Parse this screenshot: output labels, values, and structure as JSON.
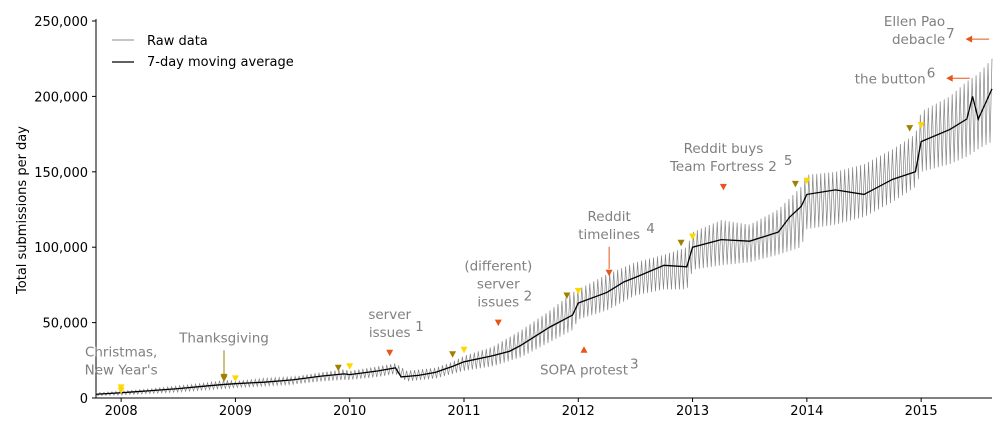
{
  "chart_data": {
    "type": "line",
    "ylabel": "Total submissions per day",
    "xlim": [
      2007.78,
      2015.62
    ],
    "ylim": [
      0,
      250000
    ],
    "yticks": [
      0,
      50000,
      100000,
      150000,
      200000,
      250000
    ],
    "ytick_labels": [
      "0",
      "50,000",
      "100,000",
      "150,000",
      "200,000",
      "250,000"
    ],
    "xticks": [
      2008,
      2009,
      2010,
      2011,
      2012,
      2013,
      2014,
      2015
    ],
    "xtick_labels": [
      "2008",
      "2009",
      "2010",
      "2011",
      "2012",
      "2013",
      "2014",
      "2015"
    ],
    "grid": false,
    "legend": {
      "position": "top-left",
      "entries": [
        {
          "label": "Raw data",
          "color": "#888888"
        },
        {
          "label": "7-day moving average",
          "color": "#000000"
        }
      ]
    },
    "series": [
      {
        "name": "Raw data",
        "style": "band",
        "color": "#777777",
        "x": [
          2007.78,
          2008.0,
          2008.25,
          2008.5,
          2008.75,
          2008.9,
          2009.0,
          2009.25,
          2009.5,
          2009.75,
          2009.95,
          2010.0,
          2010.25,
          2010.4,
          2010.5,
          2010.75,
          2010.9,
          2011.0,
          2011.25,
          2011.5,
          2011.75,
          2011.95,
          2012.0,
          2012.25,
          2012.5,
          2012.75,
          2012.95,
          2013.0,
          2013.25,
          2013.5,
          2013.75,
          2013.95,
          2014.0,
          2014.25,
          2014.5,
          2014.75,
          2014.95,
          2015.0,
          2015.25,
          2015.4,
          2015.5,
          2015.62
        ],
        "low": [
          1500,
          2000,
          3000,
          4000,
          5500,
          6000,
          7000,
          8000,
          9000,
          11000,
          12000,
          12000,
          14000,
          16000,
          11000,
          13000,
          16000,
          18000,
          21000,
          27000,
          37000,
          45000,
          52000,
          58000,
          68000,
          72000,
          72000,
          85000,
          88000,
          90000,
          95000,
          100000,
          112000,
          115000,
          120000,
          130000,
          140000,
          150000,
          155000,
          160000,
          165000,
          170000
        ],
        "high": [
          3500,
          4500,
          6000,
          8000,
          10000,
          12000,
          11000,
          13000,
          14000,
          17000,
          19000,
          18000,
          21000,
          23000,
          18000,
          20000,
          24000,
          28000,
          34000,
          45000,
          58000,
          70000,
          72000,
          82000,
          90000,
          95000,
          100000,
          110000,
          118000,
          115000,
          125000,
          140000,
          148000,
          150000,
          155000,
          165000,
          175000,
          190000,
          200000,
          210000,
          215000,
          225000
        ]
      },
      {
        "name": "7-day moving average",
        "style": "line",
        "color": "#000000",
        "x": [
          2007.78,
          2008.0,
          2008.25,
          2008.5,
          2008.75,
          2008.9,
          2009.0,
          2009.25,
          2009.5,
          2009.75,
          2009.95,
          2010.0,
          2010.25,
          2010.4,
          2010.45,
          2010.6,
          2010.75,
          2010.9,
          2011.0,
          2011.25,
          2011.4,
          2011.5,
          2011.75,
          2011.95,
          2012.0,
          2012.25,
          2012.4,
          2012.5,
          2012.75,
          2012.95,
          2013.0,
          2013.25,
          2013.5,
          2013.75,
          2013.85,
          2013.95,
          2014.0,
          2014.25,
          2014.5,
          2014.75,
          2014.95,
          2015.0,
          2015.25,
          2015.4,
          2015.45,
          2015.5,
          2015.62
        ],
        "y": [
          2500,
          3500,
          4800,
          6200,
          8000,
          9000,
          9500,
          10500,
          12000,
          14500,
          16000,
          15500,
          18000,
          20000,
          14000,
          15000,
          17000,
          21000,
          24000,
          28000,
          31000,
          35000,
          47000,
          55000,
          63000,
          70000,
          77000,
          80000,
          88000,
          87000,
          100000,
          105000,
          104000,
          110000,
          120000,
          127000,
          135000,
          138000,
          135000,
          145000,
          150000,
          170000,
          178000,
          185000,
          200000,
          185000,
          205000
        ]
      }
    ],
    "annotations": [
      {
        "lines": [
          "Christmas,",
          "New Year's"
        ],
        "x": 2008.0,
        "y": 5000,
        "marker": "down",
        "color": "#FFD700"
      },
      {
        "lines": [
          "Thanksgiving"
        ],
        "x": 2008.9,
        "y": 13000,
        "marker": "down",
        "color": "#A08000"
      },
      {
        "lines": [
          "server",
          "issues"
        ],
        "sup": "1",
        "x": 2010.35,
        "y": 30000,
        "marker": "down",
        "color": "#E8541A"
      },
      {
        "lines": [
          "(different)",
          "server",
          "issues"
        ],
        "sup": "2",
        "x": 2011.3,
        "y": 50000,
        "marker": "down",
        "color": "#E8541A"
      },
      {
        "lines": [
          "SOPA protest"
        ],
        "sup": "3",
        "x": 2012.05,
        "y": 32000,
        "marker": "up",
        "color": "#E8541A"
      },
      {
        "lines": [
          "Reddit",
          "timelines"
        ],
        "sup": "4",
        "x": 2012.27,
        "y": 83000,
        "marker": "down",
        "color": "#E8541A"
      },
      {
        "lines": [
          "Reddit buys",
          "Team Fortress 2"
        ],
        "sup": "5",
        "x": 2013.27,
        "y": 140000,
        "marker": "down",
        "color": "#E8541A"
      },
      {
        "lines": [
          "the button"
        ],
        "sup": "6",
        "x": 2015.25,
        "y": 212000,
        "marker": "left",
        "color": "#E8541A"
      },
      {
        "lines": [
          "Ellen Pao",
          "debacle"
        ],
        "sup": "7",
        "x": 2015.42,
        "y": 238000,
        "marker": "left",
        "color": "#E8541A"
      }
    ],
    "holiday_markers": [
      {
        "x": 2008.0,
        "y": 7000,
        "color": "#FFD700"
      },
      {
        "x": 2008.9,
        "y": 14000,
        "color": "#A08000"
      },
      {
        "x": 2009.0,
        "y": 13000,
        "color": "#FFD700"
      },
      {
        "x": 2009.9,
        "y": 20000,
        "color": "#A08000"
      },
      {
        "x": 2010.0,
        "y": 21000,
        "color": "#FFD700"
      },
      {
        "x": 2010.9,
        "y": 29000,
        "color": "#A08000"
      },
      {
        "x": 2011.0,
        "y": 32000,
        "color": "#FFD700"
      },
      {
        "x": 2011.9,
        "y": 68000,
        "color": "#A08000"
      },
      {
        "x": 2012.0,
        "y": 71000,
        "color": "#FFD700"
      },
      {
        "x": 2012.9,
        "y": 103000,
        "color": "#A08000"
      },
      {
        "x": 2013.0,
        "y": 107000,
        "color": "#FFD700"
      },
      {
        "x": 2013.9,
        "y": 142000,
        "color": "#A08000"
      },
      {
        "x": 2014.0,
        "y": 144000,
        "color": "#FFD700"
      },
      {
        "x": 2014.9,
        "y": 179000,
        "color": "#A08000"
      },
      {
        "x": 2015.0,
        "y": 181000,
        "color": "#FFD700"
      }
    ]
  }
}
